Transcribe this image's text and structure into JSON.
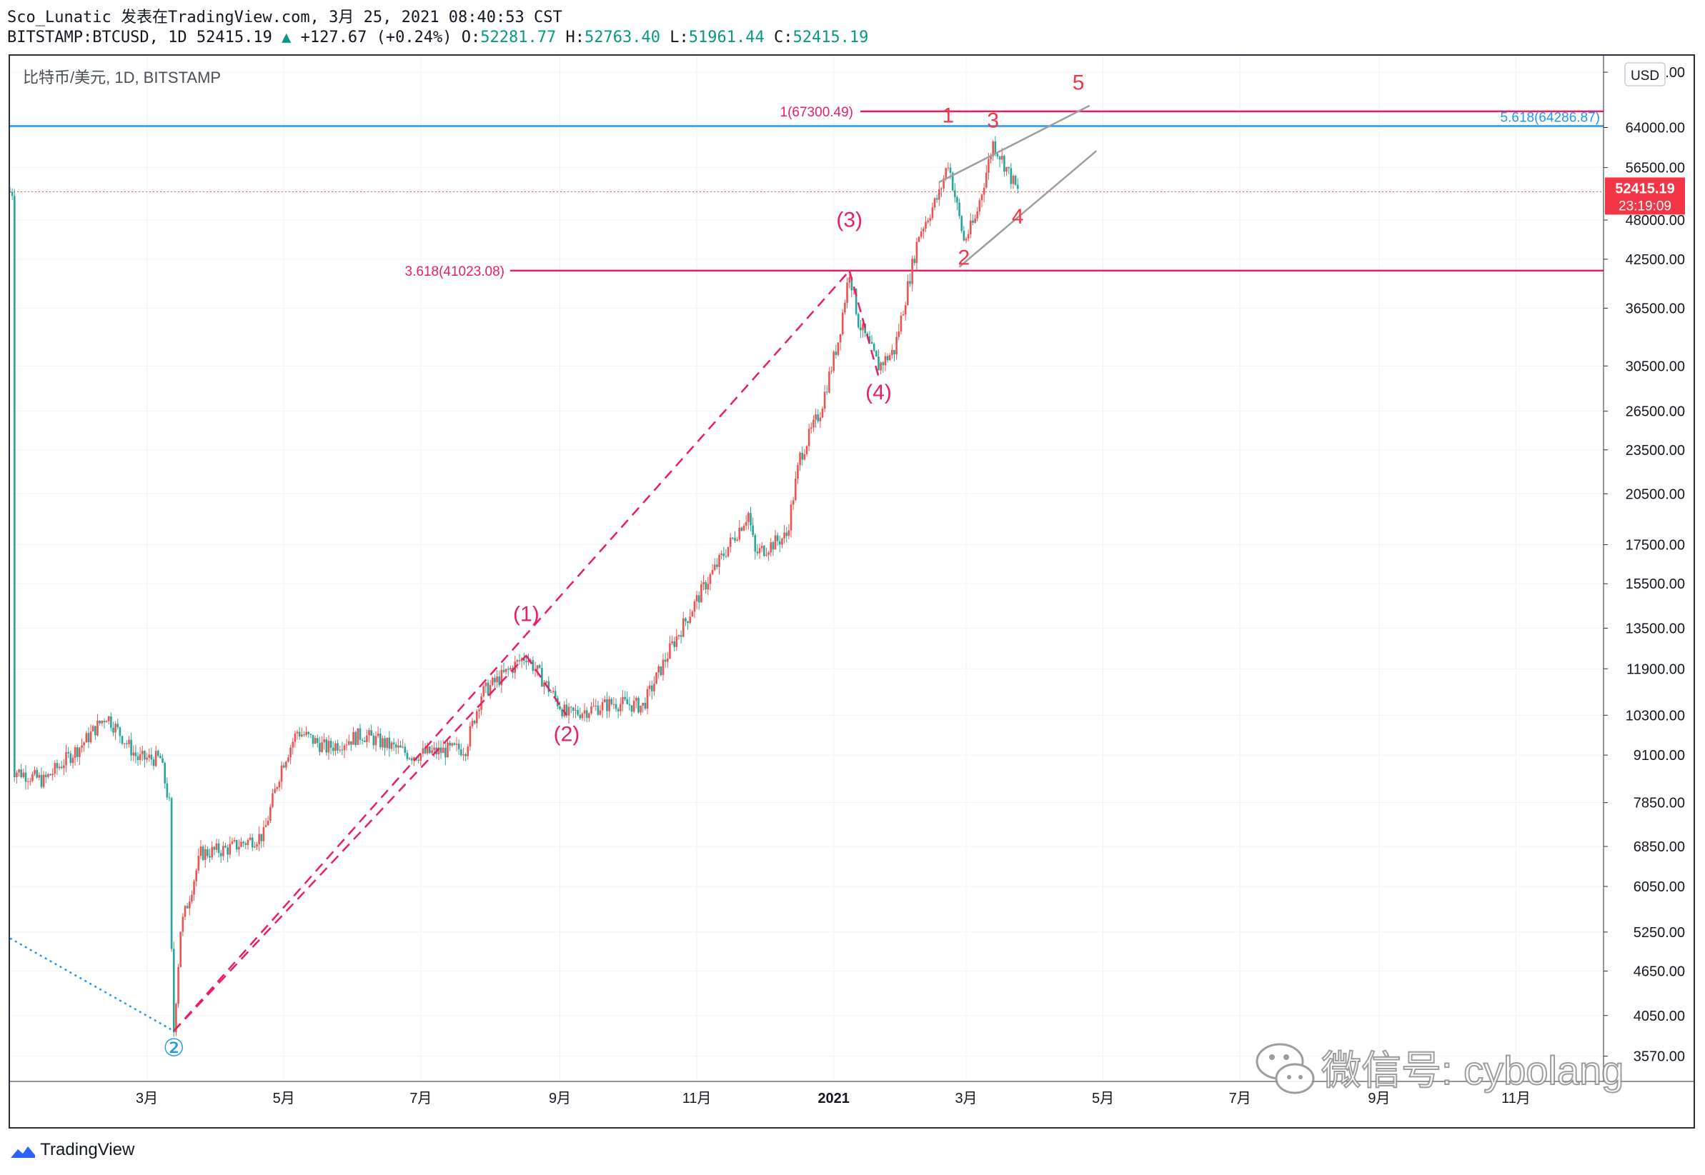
{
  "header": {
    "line1": "Sco_Lunatic 发表在TradingView.com, 3月 25, 2021 08:40:53 CST",
    "symbol": "BITSTAMP:BTCUSD, 1D 52415.19",
    "arrow": "▲",
    "change": "+127.67 (+0.24%)",
    "o_label": "O:",
    "o_value": "52281.77",
    "h_label": "H:",
    "h_value": "52763.40",
    "l_label": "L:",
    "l_value": "51961.44",
    "c_label": "C:",
    "c_value": "52415.19"
  },
  "pane_legend": "比特币/美元, 1D, BITSTAMP",
  "currency_button": "USD",
  "last_price": {
    "value": "52415.19",
    "countdown": "23:19:09"
  },
  "brand": "TradingView",
  "watermark": "微信号: cybolang",
  "colors": {
    "up": "#ef5350",
    "down": "#26a69a",
    "wave": "#e91e63",
    "fib_blue": "#2196f3",
    "label_red": "#f23645",
    "channel": "#9e9e9e"
  },
  "chart_data": {
    "type": "candlestick",
    "symbol": "BITSTAMP:BTCUSD",
    "interval": "1D",
    "y_scale": "log",
    "ylim": [
      3300,
      80000
    ],
    "y_ticks": [
      76000,
      64000,
      56500,
      48000,
      42500,
      36500,
      30500,
      26500,
      23500,
      20500,
      17500,
      15500,
      13500,
      11900,
      10300,
      9100,
      7850,
      6850,
      6050,
      5250,
      4650,
      4050,
      3570
    ],
    "x_ticks": [
      "3月",
      "5月",
      "7月",
      "9月",
      "11月",
      "2021",
      "3月",
      "5月",
      "7月",
      "9月",
      "11月"
    ],
    "price_path": [
      [
        "2020-01-01",
        8700
      ],
      [
        "2020-01-15",
        8400
      ],
      [
        "2020-02-01",
        9400
      ],
      [
        "2020-02-12",
        10300
      ],
      [
        "2020-02-26",
        9000
      ],
      [
        "2020-03-07",
        9000
      ],
      [
        "2020-03-11",
        7800
      ],
      [
        "2020-03-12",
        4900
      ],
      [
        "2020-03-13",
        3860
      ],
      [
        "2020-03-16",
        5300
      ],
      [
        "2020-03-25",
        6700
      ],
      [
        "2020-04-06",
        6800
      ],
      [
        "2020-04-22",
        7100
      ],
      [
        "2020-04-30",
        8800
      ],
      [
        "2020-05-07",
        9800
      ],
      [
        "2020-05-20",
        9300
      ],
      [
        "2020-06-05",
        9700
      ],
      [
        "2020-06-27",
        9100
      ],
      [
        "2020-07-21",
        9300
      ],
      [
        "2020-07-28",
        11000
      ],
      [
        "2020-08-17",
        12400
      ],
      [
        "2020-09-04",
        10300
      ],
      [
        "2020-09-25",
        10700
      ],
      [
        "2020-10-08",
        10600
      ],
      [
        "2020-10-21",
        12800
      ],
      [
        "2020-11-05",
        15500
      ],
      [
        "2020-11-24",
        19300
      ],
      [
        "2020-11-27",
        17000
      ],
      [
        "2020-12-11",
        18000
      ],
      [
        "2020-12-17",
        23000
      ],
      [
        "2020-12-26",
        26500
      ],
      [
        "2021-01-03",
        33000
      ],
      [
        "2021-01-08",
        41000
      ],
      [
        "2021-01-12",
        35000
      ],
      [
        "2021-01-21",
        30500
      ],
      [
        "2021-01-28",
        32000
      ],
      [
        "2021-02-08",
        46000
      ],
      [
        "2021-02-17",
        52000
      ],
      [
        "2021-02-21",
        57500
      ],
      [
        "2021-02-28",
        45000
      ],
      [
        "2021-03-05",
        48000
      ],
      [
        "2021-03-13",
        61000
      ],
      [
        "2021-03-17",
        58000
      ],
      [
        "2021-03-24",
        52415
      ]
    ],
    "horizontal_levels": [
      {
        "label": "1(67300.49)",
        "price": 67300.49
      },
      {
        "label": "5.618(64286.87)",
        "price": 64286.87
      },
      {
        "label": "3.618(41023.08)",
        "price": 41023.08
      }
    ],
    "wave_labels": [
      {
        "text": "②",
        "date": "2020-03-13",
        "price": 3570
      },
      {
        "text": "(1)",
        "date": "2020-08-17",
        "price": 13800
      },
      {
        "text": "(2)",
        "date": "2020-09-04",
        "price": 9500
      },
      {
        "text": "(3)",
        "date": "2021-01-08",
        "price": 47000
      },
      {
        "text": "(4)",
        "date": "2021-01-21",
        "price": 27500
      },
      {
        "text": "1",
        "date": "2021-02-21",
        "price": 65000
      },
      {
        "text": "2",
        "date": "2021-02-28",
        "price": 41800
      },
      {
        "text": "3",
        "date": "2021-03-13",
        "price": 64000
      },
      {
        "text": "4",
        "date": "2021-03-24",
        "price": 47500
      },
      {
        "text": "5",
        "date": "2021-04-20",
        "price": 72000
      }
    ],
    "trend_lines": [
      {
        "from": [
          "2019-12-31",
          5150
        ],
        "to": [
          "2020-03-13",
          3860
        ],
        "style": "dotted"
      },
      {
        "from": [
          "2020-03-13",
          3860
        ],
        "to": [
          "2021-01-08",
          41000
        ],
        "style": "dashed"
      },
      {
        "from": [
          "2020-03-13",
          3860
        ],
        "to": [
          "2020-08-17",
          12400
        ],
        "style": "dashed"
      },
      {
        "from": [
          "2020-08-17",
          12400
        ],
        "to": [
          "2020-09-04",
          10300
        ],
        "style": "dashed"
      },
      {
        "from": [
          "2021-01-08",
          41000
        ],
        "to": [
          "2021-01-21",
          29500
        ],
        "style": "dashed"
      },
      {
        "from": [
          "2021-02-17",
          54000
        ],
        "to": [
          "2021-04-25",
          68500
        ],
        "style": "solid"
      },
      {
        "from": [
          "2021-02-26",
          41500
        ],
        "to": [
          "2021-04-28",
          59500
        ],
        "style": "solid"
      }
    ]
  }
}
